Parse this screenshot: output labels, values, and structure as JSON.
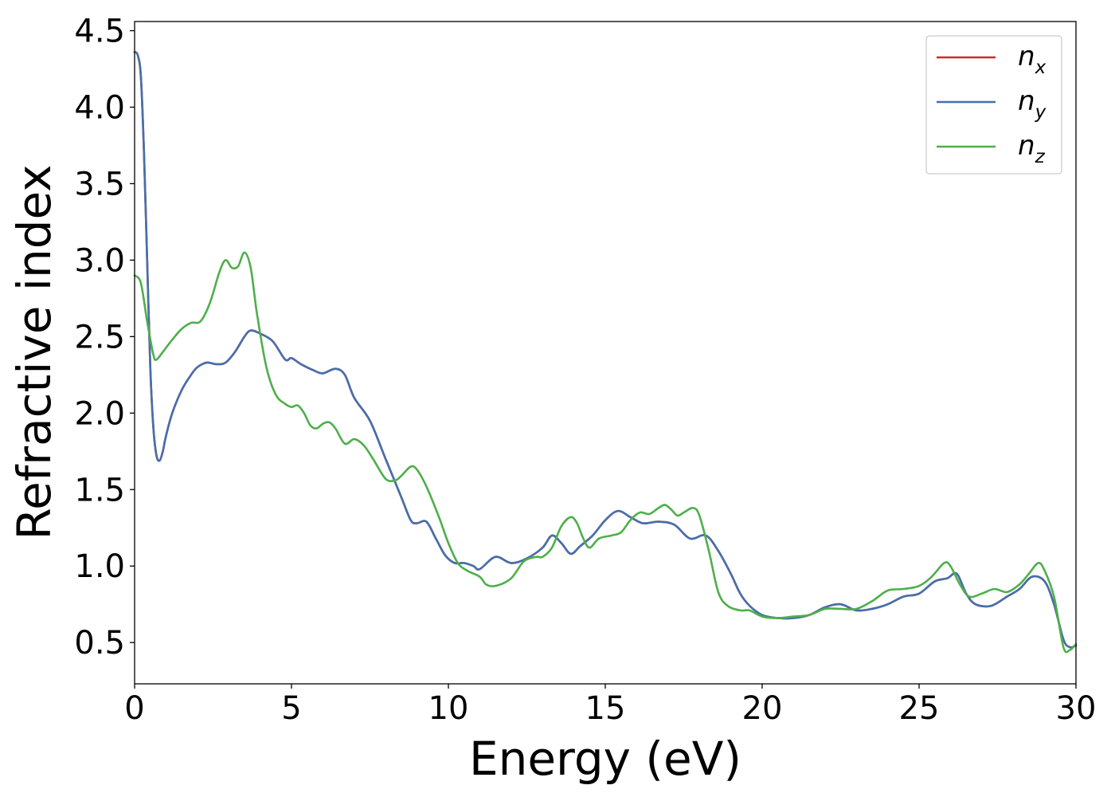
{
  "chart_data": {
    "type": "line",
    "title": "",
    "xlabel": "Energy (eV)",
    "ylabel": "Refractive index",
    "xlim": [
      0,
      30
    ],
    "ylim": [
      0.23,
      4.56
    ],
    "xticks": [
      0,
      5,
      10,
      15,
      20,
      25,
      30
    ],
    "xtick_labels": [
      "0",
      "5",
      "10",
      "15",
      "20",
      "25",
      "30"
    ],
    "yticks": [
      0.5,
      1.0,
      1.5,
      2.0,
      2.5,
      3.0,
      3.5,
      4.0,
      4.5
    ],
    "ytick_labels": [
      "0.5",
      "1.0",
      "1.5",
      "2.0",
      "2.5",
      "3.0",
      "3.5",
      "4.0",
      "4.5"
    ],
    "grid": false,
    "legend_position": "top-right",
    "series": [
      {
        "name": "n_x",
        "legend_base": "n",
        "legend_sub": "x",
        "color": "#d62728",
        "points": [
          [
            0,
            4.36
          ],
          [
            0.1,
            4.34
          ],
          [
            0.2,
            4.2
          ],
          [
            0.3,
            3.7
          ],
          [
            0.4,
            3.0
          ],
          [
            0.5,
            2.3
          ],
          [
            0.6,
            1.9
          ],
          [
            0.7,
            1.72
          ],
          [
            0.8,
            1.69
          ],
          [
            0.9,
            1.75
          ],
          [
            1.0,
            1.85
          ],
          [
            1.2,
            2.0
          ],
          [
            1.5,
            2.15
          ],
          [
            1.8,
            2.25
          ],
          [
            2.0,
            2.3
          ],
          [
            2.3,
            2.33
          ],
          [
            2.6,
            2.32
          ],
          [
            2.9,
            2.33
          ],
          [
            3.2,
            2.4
          ],
          [
            3.5,
            2.5
          ],
          [
            3.7,
            2.54
          ],
          [
            4.0,
            2.52
          ],
          [
            4.4,
            2.47
          ],
          [
            4.8,
            2.35
          ],
          [
            5.0,
            2.36
          ],
          [
            5.3,
            2.32
          ],
          [
            5.7,
            2.28
          ],
          [
            6.0,
            2.26
          ],
          [
            6.4,
            2.29
          ],
          [
            6.7,
            2.25
          ],
          [
            7.0,
            2.1
          ],
          [
            7.5,
            1.95
          ],
          [
            8.0,
            1.7
          ],
          [
            8.5,
            1.45
          ],
          [
            8.8,
            1.3
          ],
          [
            9.0,
            1.28
          ],
          [
            9.3,
            1.29
          ],
          [
            9.6,
            1.18
          ],
          [
            9.9,
            1.07
          ],
          [
            10.2,
            1.02
          ],
          [
            10.5,
            1.02
          ],
          [
            10.8,
            1.0
          ],
          [
            11.0,
            0.98
          ],
          [
            11.5,
            1.06
          ],
          [
            12.0,
            1.02
          ],
          [
            12.5,
            1.05
          ],
          [
            13.0,
            1.12
          ],
          [
            13.3,
            1.2
          ],
          [
            13.6,
            1.15
          ],
          [
            13.9,
            1.08
          ],
          [
            14.2,
            1.13
          ],
          [
            14.6,
            1.2
          ],
          [
            15.0,
            1.3
          ],
          [
            15.4,
            1.36
          ],
          [
            15.8,
            1.32
          ],
          [
            16.2,
            1.28
          ],
          [
            16.7,
            1.29
          ],
          [
            17.2,
            1.27
          ],
          [
            17.7,
            1.18
          ],
          [
            18.2,
            1.2
          ],
          [
            18.6,
            1.1
          ],
          [
            19.0,
            0.95
          ],
          [
            19.3,
            0.82
          ],
          [
            19.6,
            0.74
          ],
          [
            20.0,
            0.68
          ],
          [
            20.5,
            0.66
          ],
          [
            21.0,
            0.66
          ],
          [
            21.5,
            0.68
          ],
          [
            22.0,
            0.73
          ],
          [
            22.5,
            0.75
          ],
          [
            23.0,
            0.71
          ],
          [
            23.5,
            0.72
          ],
          [
            24.0,
            0.75
          ],
          [
            24.5,
            0.8
          ],
          [
            25.0,
            0.82
          ],
          [
            25.5,
            0.9
          ],
          [
            25.9,
            0.92
          ],
          [
            26.2,
            0.95
          ],
          [
            26.5,
            0.82
          ],
          [
            26.8,
            0.75
          ],
          [
            27.3,
            0.74
          ],
          [
            27.8,
            0.8
          ],
          [
            28.2,
            0.85
          ],
          [
            28.6,
            0.93
          ],
          [
            29.0,
            0.9
          ],
          [
            29.3,
            0.75
          ],
          [
            29.6,
            0.52
          ],
          [
            29.8,
            0.47
          ],
          [
            30.0,
            0.48
          ]
        ]
      },
      {
        "name": "n_y",
        "legend_base": "n",
        "legend_sub": "y",
        "color": "#4470ad",
        "points": [
          [
            0,
            4.36
          ],
          [
            0.1,
            4.34
          ],
          [
            0.2,
            4.2
          ],
          [
            0.3,
            3.7
          ],
          [
            0.4,
            3.0
          ],
          [
            0.5,
            2.3
          ],
          [
            0.6,
            1.9
          ],
          [
            0.7,
            1.72
          ],
          [
            0.8,
            1.69
          ],
          [
            0.9,
            1.75
          ],
          [
            1.0,
            1.85
          ],
          [
            1.2,
            2.0
          ],
          [
            1.5,
            2.15
          ],
          [
            1.8,
            2.25
          ],
          [
            2.0,
            2.3
          ],
          [
            2.3,
            2.33
          ],
          [
            2.6,
            2.32
          ],
          [
            2.9,
            2.33
          ],
          [
            3.2,
            2.4
          ],
          [
            3.5,
            2.5
          ],
          [
            3.7,
            2.54
          ],
          [
            4.0,
            2.52
          ],
          [
            4.4,
            2.47
          ],
          [
            4.8,
            2.35
          ],
          [
            5.0,
            2.36
          ],
          [
            5.3,
            2.32
          ],
          [
            5.7,
            2.28
          ],
          [
            6.0,
            2.26
          ],
          [
            6.4,
            2.29
          ],
          [
            6.7,
            2.25
          ],
          [
            7.0,
            2.1
          ],
          [
            7.5,
            1.95
          ],
          [
            8.0,
            1.7
          ],
          [
            8.5,
            1.45
          ],
          [
            8.8,
            1.3
          ],
          [
            9.0,
            1.28
          ],
          [
            9.3,
            1.29
          ],
          [
            9.6,
            1.18
          ],
          [
            9.9,
            1.07
          ],
          [
            10.2,
            1.02
          ],
          [
            10.5,
            1.02
          ],
          [
            10.8,
            1.0
          ],
          [
            11.0,
            0.98
          ],
          [
            11.5,
            1.06
          ],
          [
            12.0,
            1.02
          ],
          [
            12.5,
            1.05
          ],
          [
            13.0,
            1.12
          ],
          [
            13.3,
            1.2
          ],
          [
            13.6,
            1.15
          ],
          [
            13.9,
            1.08
          ],
          [
            14.2,
            1.13
          ],
          [
            14.6,
            1.2
          ],
          [
            15.0,
            1.3
          ],
          [
            15.4,
            1.36
          ],
          [
            15.8,
            1.32
          ],
          [
            16.2,
            1.28
          ],
          [
            16.7,
            1.29
          ],
          [
            17.2,
            1.27
          ],
          [
            17.7,
            1.18
          ],
          [
            18.2,
            1.2
          ],
          [
            18.6,
            1.1
          ],
          [
            19.0,
            0.95
          ],
          [
            19.3,
            0.82
          ],
          [
            19.6,
            0.74
          ],
          [
            20.0,
            0.68
          ],
          [
            20.5,
            0.66
          ],
          [
            21.0,
            0.66
          ],
          [
            21.5,
            0.68
          ],
          [
            22.0,
            0.73
          ],
          [
            22.5,
            0.75
          ],
          [
            23.0,
            0.71
          ],
          [
            23.5,
            0.72
          ],
          [
            24.0,
            0.75
          ],
          [
            24.5,
            0.8
          ],
          [
            25.0,
            0.82
          ],
          [
            25.5,
            0.9
          ],
          [
            25.9,
            0.92
          ],
          [
            26.2,
            0.95
          ],
          [
            26.5,
            0.82
          ],
          [
            26.8,
            0.75
          ],
          [
            27.3,
            0.74
          ],
          [
            27.8,
            0.8
          ],
          [
            28.2,
            0.85
          ],
          [
            28.6,
            0.93
          ],
          [
            29.0,
            0.9
          ],
          [
            29.3,
            0.75
          ],
          [
            29.6,
            0.52
          ],
          [
            29.8,
            0.47
          ],
          [
            30.0,
            0.48
          ]
        ]
      },
      {
        "name": "n_z",
        "legend_base": "n",
        "legend_sub": "z",
        "color": "#4daf4a",
        "points": [
          [
            0,
            2.9
          ],
          [
            0.2,
            2.85
          ],
          [
            0.4,
            2.6
          ],
          [
            0.6,
            2.38
          ],
          [
            0.7,
            2.35
          ],
          [
            0.9,
            2.4
          ],
          [
            1.2,
            2.48
          ],
          [
            1.5,
            2.55
          ],
          [
            1.8,
            2.59
          ],
          [
            2.1,
            2.6
          ],
          [
            2.4,
            2.72
          ],
          [
            2.7,
            2.92
          ],
          [
            2.9,
            3.0
          ],
          [
            3.1,
            2.95
          ],
          [
            3.3,
            2.96
          ],
          [
            3.5,
            3.05
          ],
          [
            3.7,
            2.95
          ],
          [
            3.9,
            2.65
          ],
          [
            4.2,
            2.3
          ],
          [
            4.5,
            2.12
          ],
          [
            4.8,
            2.06
          ],
          [
            5.0,
            2.04
          ],
          [
            5.2,
            2.05
          ],
          [
            5.4,
            2.0
          ],
          [
            5.6,
            1.92
          ],
          [
            5.8,
            1.9
          ],
          [
            6.0,
            1.93
          ],
          [
            6.2,
            1.94
          ],
          [
            6.4,
            1.9
          ],
          [
            6.7,
            1.8
          ],
          [
            7.0,
            1.83
          ],
          [
            7.3,
            1.79
          ],
          [
            7.6,
            1.7
          ],
          [
            8.0,
            1.57
          ],
          [
            8.3,
            1.56
          ],
          [
            8.5,
            1.59
          ],
          [
            8.8,
            1.65
          ],
          [
            9.0,
            1.63
          ],
          [
            9.3,
            1.52
          ],
          [
            9.7,
            1.32
          ],
          [
            10.0,
            1.15
          ],
          [
            10.3,
            1.02
          ],
          [
            10.6,
            0.97
          ],
          [
            11.0,
            0.93
          ],
          [
            11.2,
            0.88
          ],
          [
            11.5,
            0.87
          ],
          [
            12.0,
            0.92
          ],
          [
            12.4,
            1.03
          ],
          [
            12.8,
            1.06
          ],
          [
            13.0,
            1.06
          ],
          [
            13.3,
            1.12
          ],
          [
            13.6,
            1.26
          ],
          [
            13.9,
            1.32
          ],
          [
            14.1,
            1.28
          ],
          [
            14.3,
            1.18
          ],
          [
            14.5,
            1.12
          ],
          [
            14.8,
            1.18
          ],
          [
            15.2,
            1.2
          ],
          [
            15.5,
            1.22
          ],
          [
            15.8,
            1.3
          ],
          [
            16.1,
            1.35
          ],
          [
            16.4,
            1.34
          ],
          [
            16.7,
            1.38
          ],
          [
            16.9,
            1.4
          ],
          [
            17.1,
            1.37
          ],
          [
            17.3,
            1.33
          ],
          [
            17.5,
            1.35
          ],
          [
            17.8,
            1.38
          ],
          [
            18.0,
            1.33
          ],
          [
            18.3,
            1.1
          ],
          [
            18.6,
            0.83
          ],
          [
            18.9,
            0.74
          ],
          [
            19.3,
            0.71
          ],
          [
            19.6,
            0.71
          ],
          [
            20.0,
            0.67
          ],
          [
            20.5,
            0.66
          ],
          [
            21.0,
            0.67
          ],
          [
            21.5,
            0.68
          ],
          [
            22.0,
            0.72
          ],
          [
            22.5,
            0.72
          ],
          [
            23.0,
            0.72
          ],
          [
            23.5,
            0.77
          ],
          [
            24.0,
            0.84
          ],
          [
            24.5,
            0.85
          ],
          [
            25.0,
            0.87
          ],
          [
            25.4,
            0.93
          ],
          [
            25.8,
            1.02
          ],
          [
            26.0,
            1.0
          ],
          [
            26.3,
            0.88
          ],
          [
            26.6,
            0.8
          ],
          [
            27.0,
            0.82
          ],
          [
            27.4,
            0.85
          ],
          [
            27.8,
            0.83
          ],
          [
            28.2,
            0.88
          ],
          [
            28.5,
            0.95
          ],
          [
            28.8,
            1.02
          ],
          [
            29.0,
            0.97
          ],
          [
            29.3,
            0.8
          ],
          [
            29.6,
            0.47
          ],
          [
            29.8,
            0.45
          ],
          [
            30.0,
            0.49
          ]
        ]
      }
    ]
  }
}
